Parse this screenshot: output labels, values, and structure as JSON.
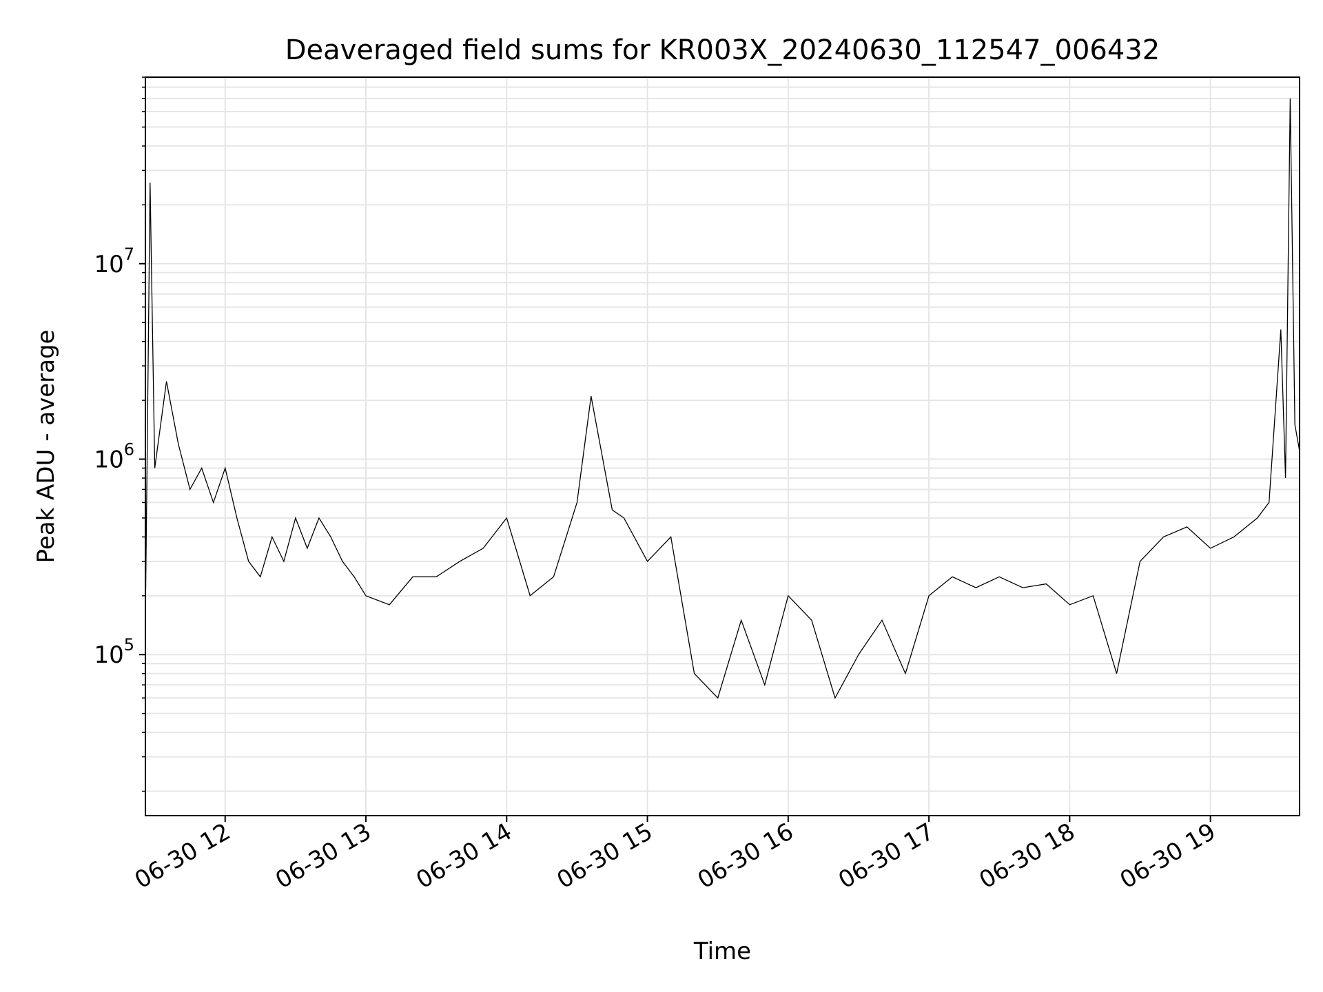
{
  "chart_data": {
    "type": "line",
    "title": "Deaveraged field sums for KR003X_20240630_112547_006432",
    "xlabel": "Time",
    "ylabel": "Peak ADU - average",
    "yscale": "log",
    "grid": "on (major and minor)",
    "legend": "none",
    "line_color": "#000000",
    "xlim": [
      "2024-06-30 11:26",
      "2024-06-30 19:38"
    ],
    "ylim": [
      15000,
      90000000
    ],
    "x_ticks": [
      {
        "value": "2024-06-30 12:00",
        "label": "06-30 12"
      },
      {
        "value": "2024-06-30 13:00",
        "label": "06-30 13"
      },
      {
        "value": "2024-06-30 14:00",
        "label": "06-30 14"
      },
      {
        "value": "2024-06-30 15:00",
        "label": "06-30 15"
      },
      {
        "value": "2024-06-30 16:00",
        "label": "06-30 16"
      },
      {
        "value": "2024-06-30 17:00",
        "label": "06-30 17"
      },
      {
        "value": "2024-06-30 18:00",
        "label": "06-30 18"
      },
      {
        "value": "2024-06-30 19:00",
        "label": "06-30 19"
      }
    ],
    "y_ticks": [
      {
        "value": 100000,
        "base": "10",
        "exp": "5"
      },
      {
        "value": 1000000,
        "base": "10",
        "exp": "6"
      },
      {
        "value": 10000000,
        "base": "10",
        "exp": "7"
      }
    ],
    "series": [
      {
        "x": [
          "2024-06-30 11:26",
          "2024-06-30 11:28",
          "2024-06-30 11:30",
          "2024-06-30 11:35",
          "2024-06-30 11:40",
          "2024-06-30 11:45",
          "2024-06-30 11:50",
          "2024-06-30 11:55",
          "2024-06-30 12:00",
          "2024-06-30 12:05",
          "2024-06-30 12:10",
          "2024-06-30 12:15",
          "2024-06-30 12:20",
          "2024-06-30 12:25",
          "2024-06-30 12:30",
          "2024-06-30 12:35",
          "2024-06-30 12:40",
          "2024-06-30 12:45",
          "2024-06-30 12:50",
          "2024-06-30 12:55",
          "2024-06-30 13:00",
          "2024-06-30 13:10",
          "2024-06-30 13:20",
          "2024-06-30 13:30",
          "2024-06-30 13:40",
          "2024-06-30 13:50",
          "2024-06-30 14:00",
          "2024-06-30 14:10",
          "2024-06-30 14:20",
          "2024-06-30 14:30",
          "2024-06-30 14:36",
          "2024-06-30 14:45",
          "2024-06-30 14:50",
          "2024-06-30 15:00",
          "2024-06-30 15:10",
          "2024-06-30 15:20",
          "2024-06-30 15:30",
          "2024-06-30 15:40",
          "2024-06-30 15:50",
          "2024-06-30 16:00",
          "2024-06-30 16:10",
          "2024-06-30 16:20",
          "2024-06-30 16:30",
          "2024-06-30 16:40",
          "2024-06-30 16:50",
          "2024-06-30 17:00",
          "2024-06-30 17:10",
          "2024-06-30 17:20",
          "2024-06-30 17:30",
          "2024-06-30 17:40",
          "2024-06-30 17:50",
          "2024-06-30 18:00",
          "2024-06-30 18:10",
          "2024-06-30 18:20",
          "2024-06-30 18:30",
          "2024-06-30 18:40",
          "2024-06-30 18:50",
          "2024-06-30 19:00",
          "2024-06-30 19:10",
          "2024-06-30 19:20",
          "2024-06-30 19:25",
          "2024-06-30 19:30",
          "2024-06-30 19:32",
          "2024-06-30 19:34",
          "2024-06-30 19:36",
          "2024-06-30 19:38"
        ],
        "values": [
          150000,
          26000000,
          900000,
          2500000,
          1200000,
          700000,
          900000,
          600000,
          900000,
          500000,
          300000,
          250000,
          400000,
          300000,
          500000,
          350000,
          500000,
          400000,
          300000,
          250000,
          200000,
          180000,
          250000,
          250000,
          300000,
          350000,
          500000,
          200000,
          250000,
          600000,
          2100000,
          550000,
          500000,
          300000,
          400000,
          80000,
          60000,
          150000,
          70000,
          200000,
          150000,
          60000,
          100000,
          150000,
          80000,
          200000,
          250000,
          220000,
          250000,
          220000,
          230000,
          180000,
          200000,
          80000,
          300000,
          400000,
          450000,
          350000,
          400000,
          500000,
          600000,
          4600000,
          800000,
          70000000,
          1500000,
          1100000
        ]
      }
    ]
  }
}
